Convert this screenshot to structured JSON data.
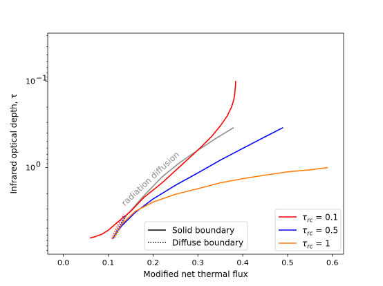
{
  "chart_data": {
    "type": "line",
    "xlabel": "Modified net thermal flux",
    "ylabel": "Infrared optical depth, τ",
    "xlim": [
      -0.035,
      0.625
    ],
    "ylim": [
      10,
      0.028
    ],
    "yscale": "log",
    "y_inverted": true,
    "xticks": [
      0.0,
      0.1,
      0.2,
      0.3,
      0.4,
      0.5,
      0.6
    ],
    "xtick_labels": [
      "0.0",
      "0.1",
      "0.2",
      "0.3",
      "0.4",
      "0.5",
      "0.6"
    ],
    "yticks": [
      0.1,
      1
    ],
    "ytick_labels": [
      {
        "base": "10",
        "exp": "−1"
      },
      {
        "base": "10",
        "exp": "0"
      }
    ],
    "grid": false,
    "annotation": {
      "text": "radiation diffusion",
      "color": "#8c8c8c"
    },
    "series": [
      {
        "name": "τ_rc = 0.1",
        "label_parts": {
          "sym": "τ",
          "sub": "rc",
          "rest": " = 0.1"
        },
        "color": "#ff0000",
        "linestyle": "solid",
        "tau_rc": 0.1,
        "x": [
          0.059,
          0.07,
          0.085,
          0.1,
          0.12,
          0.15,
          0.18,
          0.22,
          0.26,
          0.29,
          0.31,
          0.33,
          0.35,
          0.365,
          0.375,
          0.38,
          0.382,
          0.383,
          0.384,
          0.384
        ],
        "y": [
          6.5,
          6.3,
          5.9,
          5.3,
          4.3,
          3.2,
          2.2,
          1.5,
          0.97,
          0.7,
          0.56,
          0.44,
          0.33,
          0.255,
          0.2,
          0.165,
          0.145,
          0.125,
          0.11,
          0.1
        ]
      },
      {
        "name": "τ_rc = 0.5",
        "label_parts": {
          "sym": "τ",
          "sub": "rc",
          "rest": " = 0.5"
        },
        "color": "#0000ff",
        "linestyle": "solid",
        "tau_rc": 0.5,
        "x": [
          0.11,
          0.13,
          0.16,
          0.2,
          0.25,
          0.3,
          0.35,
          0.4,
          0.45,
          0.49
        ],
        "y": [
          6.5,
          4.7,
          3.3,
          2.3,
          1.6,
          1.15,
          0.82,
          0.6,
          0.44,
          0.345
        ]
      },
      {
        "name": "τ_rc = 1",
        "label_parts": {
          "sym": "τ",
          "sub": "rc",
          "rest": " = 1"
        },
        "color": "#ff7f0e",
        "linestyle": "solid",
        "tau_rc": 1,
        "x": [
          0.11,
          0.13,
          0.16,
          0.2,
          0.25,
          0.3,
          0.35,
          0.4,
          0.45,
          0.5,
          0.55,
          0.59
        ],
        "y": [
          6.5,
          4.5,
          3.2,
          2.5,
          2.03,
          1.75,
          1.5,
          1.34,
          1.22,
          1.12,
          1.06,
          1.0
        ]
      },
      {
        "name": "radiation diffusion",
        "color": "#8c8c8c",
        "linestyle": "solid",
        "x": [
          0.11,
          0.14,
          0.18,
          0.22,
          0.26,
          0.3,
          0.34,
          0.38
        ],
        "y": [
          6.7,
          3.6,
          2.1,
          1.28,
          0.87,
          0.63,
          0.46,
          0.345
        ]
      }
    ],
    "dotted_series": [
      {
        "color": "#ff0000",
        "x": [
          0.108,
          0.12,
          0.135
        ],
        "y": [
          6.6,
          4.8,
          3.5
        ]
      },
      {
        "color": "#0000ff",
        "x": [
          0.112,
          0.123,
          0.138
        ],
        "y": [
          6.5,
          4.9,
          3.6
        ]
      },
      {
        "color": "#ff7f0e",
        "x": [
          0.116,
          0.127,
          0.142
        ],
        "y": [
          6.4,
          4.8,
          3.5
        ]
      }
    ],
    "legends": [
      {
        "placement": "lower-center",
        "entries": [
          {
            "label": "Solid boundary",
            "color": "#000000",
            "linestyle": "solid"
          },
          {
            "label": "Diffuse boundary",
            "color": "#000000",
            "linestyle": "dotted"
          }
        ]
      },
      {
        "placement": "lower-right",
        "entries": [
          {
            "series": 0
          },
          {
            "series": 1
          },
          {
            "series": 2
          }
        ]
      }
    ]
  }
}
